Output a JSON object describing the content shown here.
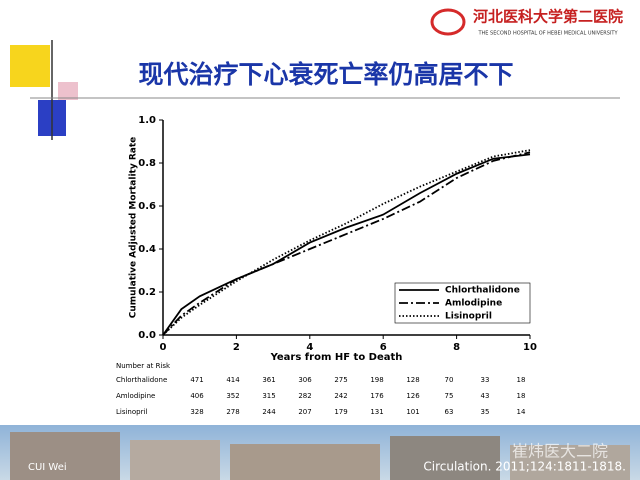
{
  "header": {
    "logo_title": "河北医科大学第二医院",
    "logo_subtitle": "THE SECOND HOSPITAL OF HEBEI MEDICAL UNIVERSITY"
  },
  "slide_title": "现代治疗下心衰死亡率仍高居不下",
  "chart_data": {
    "type": "line",
    "x_label": "Years from HF to Death",
    "y_label": "Cumulative Adjusted Mortality Rate",
    "x": [
      0,
      0.5,
      1,
      2,
      3,
      4,
      5,
      6,
      7,
      8,
      9,
      10
    ],
    "series": [
      {
        "name": "Chlorthalidone",
        "color": "#000000",
        "dash": "solid",
        "values": [
          0,
          0.12,
          0.18,
          0.26,
          0.33,
          0.43,
          0.5,
          0.56,
          0.66,
          0.75,
          0.82,
          0.84
        ]
      },
      {
        "name": "Amlodipine",
        "color": "#000000",
        "dash": "dashdot",
        "values": [
          0,
          0.09,
          0.15,
          0.26,
          0.33,
          0.4,
          0.47,
          0.54,
          0.62,
          0.73,
          0.81,
          0.85
        ]
      },
      {
        "name": "Lisinopril",
        "color": "#000000",
        "dash": "dotted",
        "values": [
          0,
          0.08,
          0.14,
          0.25,
          0.35,
          0.44,
          0.52,
          0.61,
          0.69,
          0.76,
          0.83,
          0.86
        ]
      }
    ],
    "xlim": [
      0,
      10
    ],
    "xticks": [
      0,
      2,
      4,
      6,
      8,
      10
    ],
    "ylim": [
      0,
      1
    ],
    "yticks": [
      {
        "value": 0,
        "label": "0.0"
      },
      0.2,
      0.4,
      0.6,
      0.8,
      {
        "value": 1,
        "label": "1.0"
      }
    ],
    "legend": "lower right"
  },
  "risk_table": {
    "title": "Number at Risk",
    "rows": [
      {
        "name": "Chlorthalidone",
        "values": [
          471,
          414,
          361,
          306,
          275,
          198,
          128,
          70,
          33,
          18
        ]
      },
      {
        "name": "Amlodipine",
        "values": [
          406,
          352,
          315,
          282,
          242,
          176,
          126,
          75,
          43,
          18
        ]
      },
      {
        "name": "Lisinopril",
        "values": [
          328,
          278,
          244,
          207,
          179,
          131,
          101,
          63,
          35,
          14
        ]
      }
    ]
  },
  "footer": {
    "author": "CUI Wei",
    "watermark": "崔炜医大二院",
    "citation": "Circulation. 2011;124:1811-1818."
  }
}
